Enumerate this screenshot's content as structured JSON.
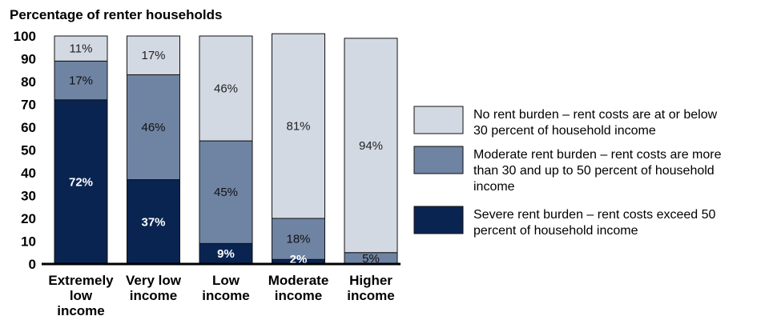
{
  "chart_data": {
    "type": "bar",
    "stacked": true,
    "title": "Percentage of renter households",
    "categories": [
      [
        "Extremely",
        "low",
        "income"
      ],
      [
        "Very low",
        "income"
      ],
      [
        "Low",
        "income"
      ],
      [
        "Moderate",
        "income"
      ],
      [
        "Higher",
        "income"
      ]
    ],
    "ylim": [
      0,
      100
    ],
    "yticks": [
      0,
      10,
      20,
      30,
      40,
      50,
      60,
      70,
      80,
      90,
      100
    ],
    "series": [
      {
        "name": "Severe rent burden – rent costs exceed 50 percent of household income",
        "values": [
          72,
          37,
          9,
          2,
          0
        ],
        "labels": [
          "72%",
          "37%",
          "9%",
          "2%",
          ""
        ],
        "color": "#0a2452",
        "label_color": "#ffffff"
      },
      {
        "name": "Moderate rent burden – rent costs are more than 30 and up to 50 percent of household income",
        "values": [
          17,
          46,
          45,
          18,
          5
        ],
        "labels": [
          "17%",
          "46%",
          "45%",
          "18%",
          "5%"
        ],
        "color": "#6f84a3",
        "label_color": "#111111"
      },
      {
        "name": "No rent burden – rent costs are at or below 30 percent of household income",
        "values": [
          11,
          17,
          46,
          81,
          94
        ],
        "labels": [
          "11%",
          "17%",
          "46%",
          "81%",
          "94%"
        ],
        "color": "#d3d9e3",
        "label_color": "#222222"
      }
    ],
    "legend": [
      {
        "series": 2,
        "lines": [
          "No rent burden – rent costs are at or below",
          "30 percent of household income"
        ]
      },
      {
        "series": 1,
        "lines": [
          "Moderate rent burden – rent costs are more",
          "than 30 and up to 50 percent of household",
          "income"
        ]
      },
      {
        "series": 0,
        "lines": [
          "Severe rent burden – rent costs exceed 50",
          "percent of household income"
        ]
      }
    ],
    "legend_position": "right",
    "grid": false
  }
}
